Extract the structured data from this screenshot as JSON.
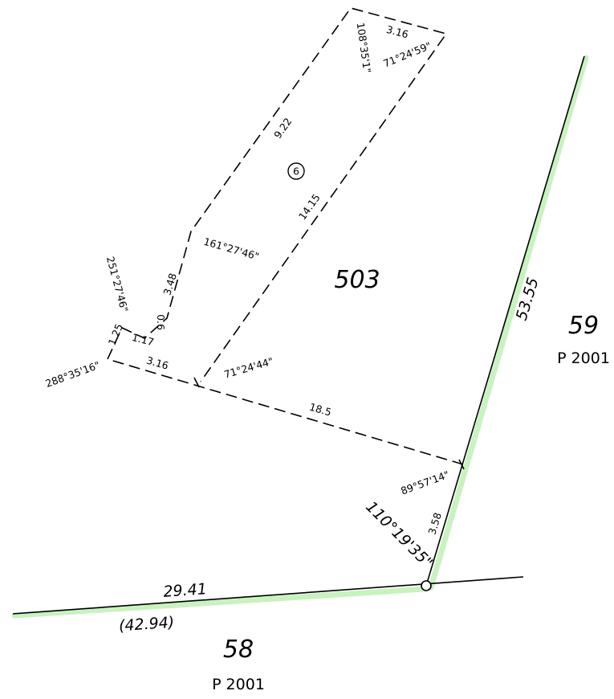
{
  "parcels": {
    "main": {
      "number": "503"
    },
    "right": {
      "number": "59",
      "plan": "P 2001"
    },
    "bottom": {
      "number": "58",
      "plan": "P 2001"
    }
  },
  "easement": {
    "marker": "6"
  },
  "dimensions": {
    "top_width": "3.16",
    "left_long": "9.22",
    "right_long": "14.15",
    "left_short": "3.48",
    "step_a": "0.6",
    "step_b": "1.17",
    "step_c": "1.25",
    "bottom_short": "3.16",
    "cross_line": "18.5",
    "right_boundary": "53.55",
    "corner_short": "3.58",
    "bottom_boundary": "29.41",
    "bottom_total": "(42.94)"
  },
  "angles": {
    "top_left": "108°35'1\"",
    "top_right": "71°24'59\"",
    "mid_left": "161°27'46\"",
    "step_left": "251°27'46\"",
    "bottom_left": "288°35'16\"",
    "bottom_mid": "71°24'44\"",
    "right_corner": "89°57'14\"",
    "main_corner": "110°19'35\""
  },
  "colors": {
    "boundary_highlight": "#c8f2c0",
    "line": "#000000"
  }
}
